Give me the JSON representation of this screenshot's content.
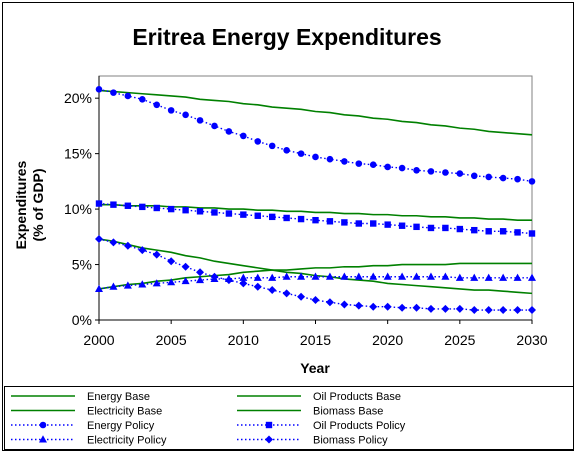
{
  "chart_data": {
    "type": "line",
    "title": "Eritrea Energy Expenditures",
    "xlabel": "Year",
    "ylabel_line1": "Expenditures",
    "ylabel_line2": "(% of GDP)",
    "xlim": [
      2000,
      2030
    ],
    "ylim": [
      0,
      22
    ],
    "x_ticks": [
      2000,
      2005,
      2010,
      2015,
      2020,
      2025,
      2030
    ],
    "y_ticks": [
      0,
      5,
      10,
      15,
      20
    ],
    "y_tick_labels": [
      "0%",
      "5%",
      "10%",
      "15%",
      "20%"
    ],
    "grid": false,
    "legend_position": "bottom",
    "colors": {
      "base": "#008000",
      "policy": "#0000ff"
    },
    "x": [
      2000,
      2001,
      2002,
      2003,
      2004,
      2005,
      2006,
      2007,
      2008,
      2009,
      2010,
      2011,
      2012,
      2013,
      2014,
      2015,
      2016,
      2017,
      2018,
      2019,
      2020,
      2021,
      2022,
      2023,
      2024,
      2025,
      2026,
      2027,
      2028,
      2029,
      2030
    ],
    "series": [
      {
        "name": "Energy Base",
        "style": "solid",
        "marker": "none",
        "values": [
          20.7,
          20.6,
          20.5,
          20.4,
          20.3,
          20.2,
          20.1,
          19.9,
          19.8,
          19.7,
          19.5,
          19.4,
          19.2,
          19.1,
          19.0,
          18.8,
          18.7,
          18.5,
          18.4,
          18.2,
          18.1,
          17.9,
          17.8,
          17.6,
          17.5,
          17.3,
          17.2,
          17.0,
          16.9,
          16.8,
          16.7
        ]
      },
      {
        "name": "Oil Products Base",
        "style": "solid",
        "marker": "none",
        "values": [
          10.4,
          10.4,
          10.3,
          10.3,
          10.3,
          10.2,
          10.2,
          10.1,
          10.1,
          10.0,
          10.0,
          9.9,
          9.9,
          9.8,
          9.8,
          9.7,
          9.7,
          9.6,
          9.6,
          9.5,
          9.5,
          9.4,
          9.4,
          9.3,
          9.3,
          9.2,
          9.2,
          9.1,
          9.1,
          9.0,
          9.0
        ]
      },
      {
        "name": "Electricity Base",
        "style": "solid",
        "marker": "none",
        "values": [
          2.8,
          3.0,
          3.2,
          3.3,
          3.5,
          3.6,
          3.8,
          3.9,
          4.0,
          4.1,
          4.3,
          4.4,
          4.5,
          4.5,
          4.6,
          4.7,
          4.7,
          4.8,
          4.8,
          4.9,
          4.9,
          5.0,
          5.0,
          5.0,
          5.0,
          5.1,
          5.1,
          5.1,
          5.1,
          5.1,
          5.1
        ]
      },
      {
        "name": "Biomass Base",
        "style": "solid",
        "marker": "none",
        "values": [
          7.3,
          7.1,
          6.8,
          6.5,
          6.3,
          6.1,
          5.8,
          5.6,
          5.3,
          5.1,
          4.9,
          4.7,
          4.5,
          4.3,
          4.2,
          4.0,
          3.9,
          3.7,
          3.6,
          3.5,
          3.3,
          3.2,
          3.1,
          3.0,
          2.9,
          2.8,
          2.7,
          2.7,
          2.6,
          2.5,
          2.4
        ]
      },
      {
        "name": "Energy Policy",
        "style": "dotted",
        "marker": "circle",
        "values": [
          20.8,
          20.5,
          20.2,
          19.9,
          19.4,
          18.9,
          18.5,
          18.0,
          17.5,
          17.0,
          16.6,
          16.1,
          15.7,
          15.3,
          15.0,
          14.7,
          14.5,
          14.3,
          14.1,
          14.0,
          13.8,
          13.7,
          13.5,
          13.4,
          13.3,
          13.2,
          13.0,
          12.9,
          12.8,
          12.7,
          12.5
        ]
      },
      {
        "name": "Oil Products Policy",
        "style": "dotted",
        "marker": "square",
        "values": [
          10.5,
          10.4,
          10.3,
          10.2,
          10.1,
          10.0,
          9.9,
          9.8,
          9.7,
          9.6,
          9.5,
          9.4,
          9.3,
          9.2,
          9.1,
          9.0,
          8.9,
          8.8,
          8.7,
          8.7,
          8.6,
          8.5,
          8.4,
          8.3,
          8.3,
          8.2,
          8.1,
          8.0,
          8.0,
          7.9,
          7.8
        ]
      },
      {
        "name": "Electricity Policy",
        "style": "dotted",
        "marker": "triangle",
        "values": [
          2.8,
          3.0,
          3.1,
          3.2,
          3.3,
          3.4,
          3.5,
          3.6,
          3.7,
          3.7,
          3.8,
          3.8,
          3.8,
          3.9,
          3.9,
          3.9,
          3.9,
          3.9,
          3.9,
          3.9,
          3.9,
          3.9,
          3.9,
          3.9,
          3.9,
          3.8,
          3.8,
          3.8,
          3.8,
          3.8,
          3.8
        ]
      },
      {
        "name": "Biomass Policy",
        "style": "dotted",
        "marker": "diamond",
        "values": [
          7.3,
          7.0,
          6.7,
          6.3,
          5.9,
          5.3,
          4.8,
          4.3,
          3.9,
          3.6,
          3.3,
          3.0,
          2.7,
          2.4,
          2.1,
          1.8,
          1.6,
          1.4,
          1.3,
          1.2,
          1.2,
          1.1,
          1.1,
          1.0,
          1.0,
          1.0,
          0.9,
          0.9,
          0.9,
          0.9,
          0.9
        ]
      }
    ]
  }
}
